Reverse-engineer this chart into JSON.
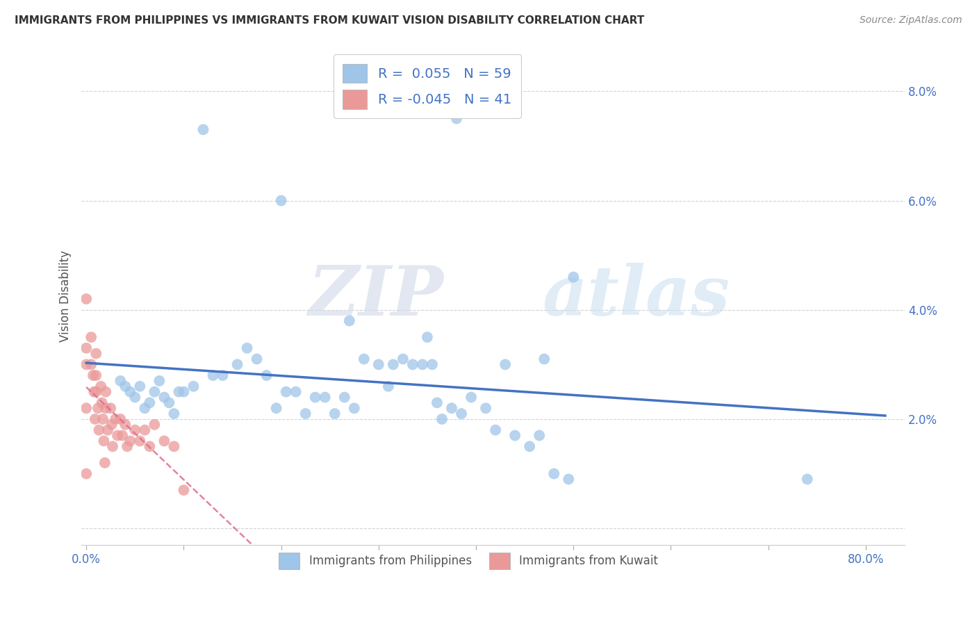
{
  "title": "IMMIGRANTS FROM PHILIPPINES VS IMMIGRANTS FROM KUWAIT VISION DISABILITY CORRELATION CHART",
  "source": "Source: ZipAtlas.com",
  "ylabel": "Vision Disability",
  "r_philippines": 0.055,
  "n_philippines": 59,
  "r_kuwait": -0.045,
  "n_kuwait": 41,
  "xlim": [
    -0.005,
    0.84
  ],
  "ylim": [
    -0.003,
    0.088
  ],
  "xticks": [
    0.0,
    0.1,
    0.2,
    0.3,
    0.4,
    0.5,
    0.6,
    0.7,
    0.8
  ],
  "yticks": [
    0.0,
    0.02,
    0.04,
    0.06,
    0.08
  ],
  "ytick_labels": [
    "",
    "2.0%",
    "4.0%",
    "6.0%",
    "8.0%"
  ],
  "xtick_labels": [
    "0.0%",
    "",
    "",
    "",
    "",
    "",
    "",
    "",
    "80.0%"
  ],
  "tick_color": "#4472C4",
  "color_philippines": "#9fc5e8",
  "color_kuwait": "#ea9999",
  "line_color_philippines": "#4472C4",
  "line_color_kuwait": "#e06c8c",
  "background_color": "#ffffff",
  "watermark_zip": "ZIP",
  "watermark_atlas": "atlas",
  "philippines_x": [
    0.12,
    0.38,
    0.2,
    0.035,
    0.04,
    0.045,
    0.05,
    0.055,
    0.06,
    0.065,
    0.07,
    0.075,
    0.08,
    0.085,
    0.09,
    0.095,
    0.1,
    0.11,
    0.13,
    0.14,
    0.155,
    0.165,
    0.175,
    0.185,
    0.195,
    0.205,
    0.215,
    0.225,
    0.235,
    0.245,
    0.255,
    0.265,
    0.275,
    0.285,
    0.3,
    0.31,
    0.315,
    0.325,
    0.335,
    0.345,
    0.355,
    0.365,
    0.375,
    0.385,
    0.395,
    0.41,
    0.42,
    0.44,
    0.455,
    0.465,
    0.48,
    0.495,
    0.27,
    0.35,
    0.36,
    0.43,
    0.47,
    0.5,
    0.74
  ],
  "philippines_y": [
    0.073,
    0.075,
    0.06,
    0.027,
    0.026,
    0.025,
    0.024,
    0.026,
    0.022,
    0.023,
    0.025,
    0.027,
    0.024,
    0.023,
    0.021,
    0.025,
    0.025,
    0.026,
    0.028,
    0.028,
    0.03,
    0.033,
    0.031,
    0.028,
    0.022,
    0.025,
    0.025,
    0.021,
    0.024,
    0.024,
    0.021,
    0.024,
    0.022,
    0.031,
    0.03,
    0.026,
    0.03,
    0.031,
    0.03,
    0.03,
    0.03,
    0.02,
    0.022,
    0.021,
    0.024,
    0.022,
    0.018,
    0.017,
    0.015,
    0.017,
    0.01,
    0.009,
    0.038,
    0.035,
    0.023,
    0.03,
    0.031,
    0.046,
    0.009
  ],
  "kuwait_x": [
    0.0,
    0.0,
    0.0,
    0.0,
    0.0,
    0.005,
    0.005,
    0.007,
    0.008,
    0.009,
    0.01,
    0.01,
    0.01,
    0.012,
    0.013,
    0.015,
    0.016,
    0.017,
    0.018,
    0.019,
    0.02,
    0.02,
    0.022,
    0.025,
    0.026,
    0.027,
    0.03,
    0.032,
    0.035,
    0.037,
    0.04,
    0.042,
    0.045,
    0.05,
    0.055,
    0.06,
    0.065,
    0.07,
    0.08,
    0.09,
    0.1
  ],
  "kuwait_y": [
    0.042,
    0.033,
    0.03,
    0.022,
    0.01,
    0.035,
    0.03,
    0.028,
    0.025,
    0.02,
    0.032,
    0.028,
    0.025,
    0.022,
    0.018,
    0.026,
    0.023,
    0.02,
    0.016,
    0.012,
    0.025,
    0.022,
    0.018,
    0.022,
    0.019,
    0.015,
    0.02,
    0.017,
    0.02,
    0.017,
    0.019,
    0.015,
    0.016,
    0.018,
    0.016,
    0.018,
    0.015,
    0.019,
    0.016,
    0.015,
    0.007
  ]
}
